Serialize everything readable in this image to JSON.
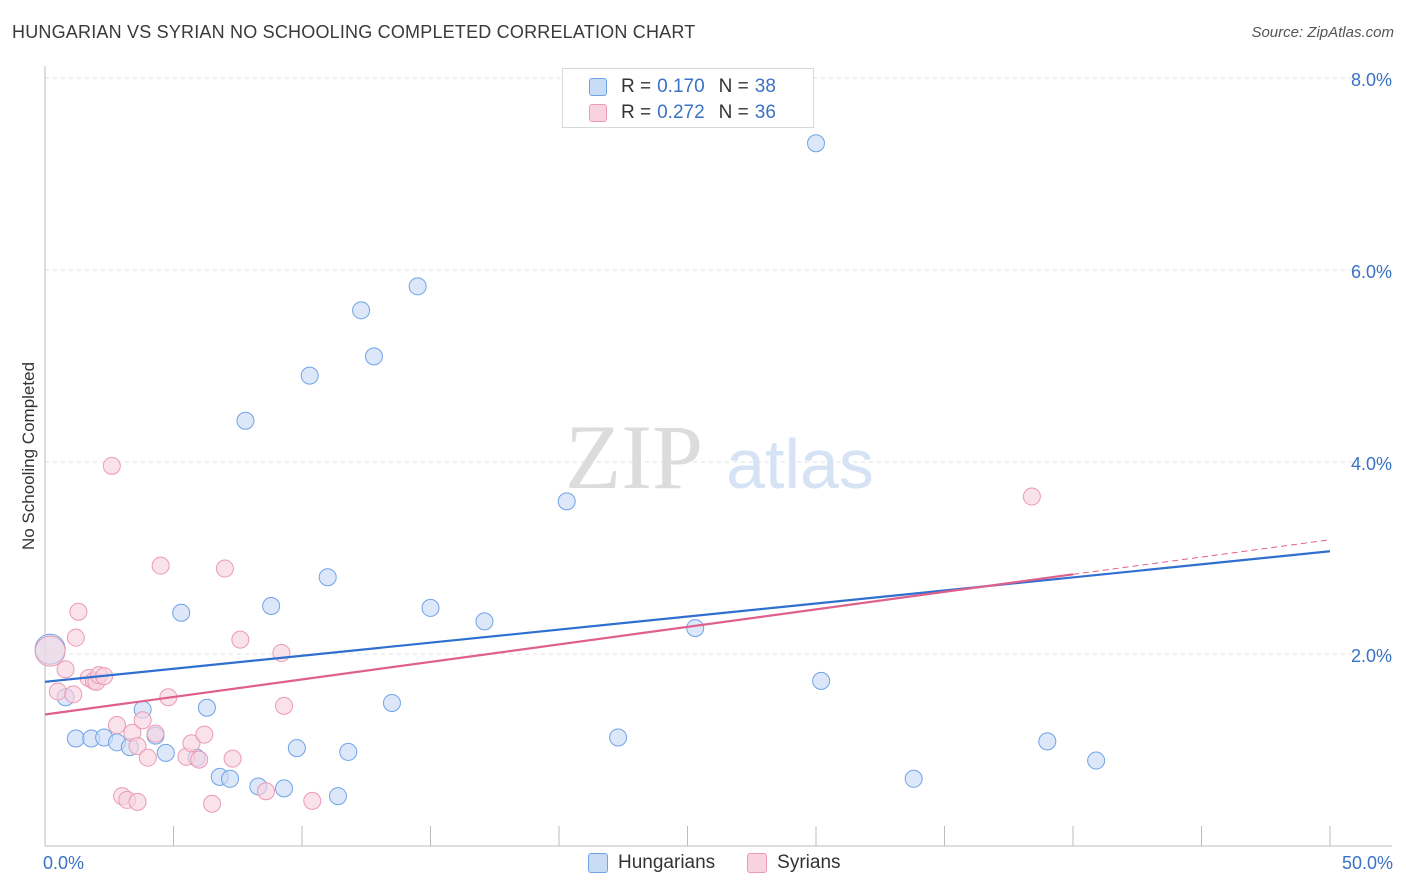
{
  "header": {
    "title": "HUNGARIAN VS SYRIAN NO SCHOOLING COMPLETED CORRELATION CHART",
    "source": "Source: ZipAtlas.com"
  },
  "watermark": {
    "zip": "ZIP",
    "atlas": "atlas"
  },
  "colors": {
    "hungarians": "#6fa3e6",
    "hungarians_fill": "#c9dcf6",
    "hungarians_line": "#2e6fd0",
    "syrians": "#ec9ab5",
    "syrians_fill": "#f8d3df",
    "syrians_line": "#e0608c",
    "axis_label": "#3a72c4"
  },
  "legend_top": {
    "rows": [
      {
        "r_label": "R =",
        "r_value": "0.170",
        "n_label": "N =",
        "n_value": "38"
      },
      {
        "r_label": "R =",
        "r_value": "0.272",
        "n_label": "N =",
        "n_value": "36"
      }
    ]
  },
  "legend_bottom": {
    "items": [
      "Hungarians",
      "Syrians"
    ]
  },
  "chart_data": {
    "type": "scatter",
    "xlabel": "",
    "ylabel": "No Schooling Completed",
    "xlim": [
      0,
      50
    ],
    "ylim": [
      0,
      8
    ],
    "x_tick_labels": [
      "0.0%",
      "50.0%"
    ],
    "y_tick_values": [
      2,
      4,
      6,
      8
    ],
    "y_tick_labels": [
      "2.0%",
      "4.0%",
      "6.0%",
      "8.0%"
    ],
    "grid": true,
    "legend": "top-center",
    "series": [
      {
        "name": "Hungarians",
        "trend": {
          "x": [
            0,
            50
          ],
          "y": [
            1.71,
            3.07
          ]
        },
        "points": [
          [
            0.2,
            2.05
          ],
          [
            0.8,
            1.55
          ],
          [
            1.2,
            1.12
          ],
          [
            1.8,
            1.12
          ],
          [
            2.3,
            1.13
          ],
          [
            2.8,
            1.08
          ],
          [
            3.3,
            1.03
          ],
          [
            3.8,
            1.42
          ],
          [
            4.3,
            1.15
          ],
          [
            4.7,
            0.97
          ],
          [
            5.3,
            2.43
          ],
          [
            5.9,
            0.92
          ],
          [
            6.3,
            1.44
          ],
          [
            6.8,
            0.72
          ],
          [
            7.2,
            0.7
          ],
          [
            7.8,
            4.43
          ],
          [
            8.3,
            0.62
          ],
          [
            8.8,
            2.5
          ],
          [
            9.3,
            0.6
          ],
          [
            9.8,
            1.02
          ],
          [
            10.3,
            4.9
          ],
          [
            11.0,
            2.8
          ],
          [
            11.4,
            0.52
          ],
          [
            11.8,
            0.98
          ],
          [
            12.3,
            5.58
          ],
          [
            12.8,
            5.1
          ],
          [
            13.5,
            1.49
          ],
          [
            14.5,
            5.83
          ],
          [
            15.0,
            2.48
          ],
          [
            17.1,
            2.34
          ],
          [
            20.3,
            3.59
          ],
          [
            22.3,
            1.13
          ],
          [
            25.3,
            2.27
          ],
          [
            30.2,
            1.72
          ],
          [
            30.0,
            7.32
          ],
          [
            33.8,
            0.7
          ],
          [
            39.0,
            1.09
          ],
          [
            40.9,
            0.89
          ]
        ]
      },
      {
        "name": "Syrians",
        "trend": {
          "x": [
            0,
            40
          ],
          "y": [
            1.37,
            2.83
          ]
        },
        "trend_extension": {
          "x": [
            40,
            50
          ],
          "y": [
            2.83,
            3.19
          ]
        },
        "points": [
          [
            0.2,
            2.03
          ],
          [
            0.5,
            1.61
          ],
          [
            0.8,
            1.84
          ],
          [
            1.1,
            1.58
          ],
          [
            1.2,
            2.17
          ],
          [
            1.3,
            2.44
          ],
          [
            1.7,
            1.75
          ],
          [
            1.9,
            1.72
          ],
          [
            2.0,
            1.71
          ],
          [
            2.1,
            1.78
          ],
          [
            2.3,
            1.77
          ],
          [
            2.6,
            3.96
          ],
          [
            2.8,
            1.26
          ],
          [
            3.0,
            0.52
          ],
          [
            3.2,
            0.48
          ],
          [
            3.4,
            1.18
          ],
          [
            3.6,
            1.04
          ],
          [
            3.6,
            0.46
          ],
          [
            3.8,
            1.31
          ],
          [
            4.0,
            0.92
          ],
          [
            4.3,
            1.17
          ],
          [
            4.5,
            2.92
          ],
          [
            4.8,
            1.55
          ],
          [
            5.5,
            0.93
          ],
          [
            5.7,
            1.07
          ],
          [
            6.0,
            0.9
          ],
          [
            6.2,
            1.16
          ],
          [
            6.5,
            0.44
          ],
          [
            7.0,
            2.89
          ],
          [
            7.3,
            0.91
          ],
          [
            7.6,
            2.15
          ],
          [
            8.6,
            0.57
          ],
          [
            9.2,
            2.01
          ],
          [
            9.3,
            1.46
          ],
          [
            10.4,
            0.47
          ],
          [
            38.4,
            3.64
          ]
        ]
      }
    ]
  }
}
